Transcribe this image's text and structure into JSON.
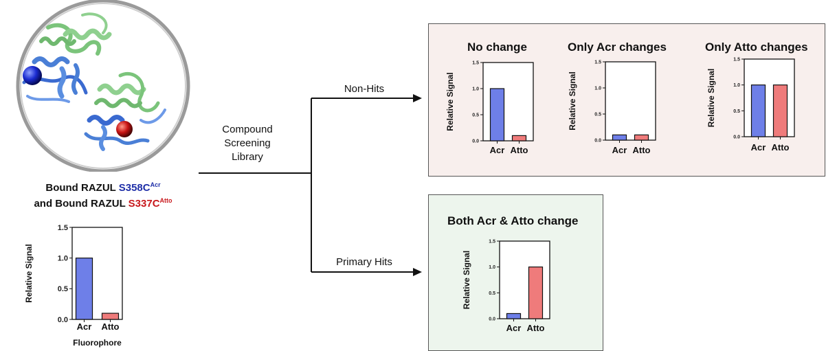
{
  "protein": {
    "caption_line1_prefix": "Bound RAZUL ",
    "caption_line1_site": "S358C",
    "caption_line1_sup": "Acr",
    "caption_line2_prefix": "and Bound RAZUL ",
    "caption_line2_site": "S337C",
    "caption_line2_sup": "Atto",
    "colors": {
      "acr": "#1f2fa8",
      "atto": "#c8181c"
    }
  },
  "flow": {
    "library_line1": "Compound",
    "library_line2": "Screening",
    "library_line3": "Library",
    "non_hits": "Non-Hits",
    "primary_hits": "Primary Hits"
  },
  "panels": {
    "non_hits_bg": "#f8efed",
    "primary_hits_bg": "#edf5ed"
  },
  "colors": {
    "acr_bar": "#6e7fe8",
    "atto_bar": "#ef7b7b",
    "edge": "#111111"
  },
  "chart_data": [
    {
      "id": "baseline",
      "type": "bar",
      "title": "",
      "categories": [
        "Acr",
        "Atto"
      ],
      "values": [
        1.0,
        0.1
      ],
      "ylabel": "Relative Signal",
      "xlabel": "Fluorophore",
      "ylim": [
        0,
        1.5
      ],
      "yticks": [
        "0.0",
        "0.5",
        "1.0",
        "1.5"
      ],
      "grid": false
    },
    {
      "id": "no-change",
      "type": "bar",
      "title": "No change",
      "categories": [
        "Acr",
        "Atto"
      ],
      "values": [
        1.0,
        0.1
      ],
      "ylabel": "Relative Signal",
      "xlabel": "",
      "ylim": [
        0,
        1.5
      ],
      "yticks": [
        "0.0",
        "0.5",
        "1.0",
        "1.5"
      ],
      "grid": false
    },
    {
      "id": "only-acr",
      "type": "bar",
      "title": "Only Acr changes",
      "categories": [
        "Acr",
        "Atto"
      ],
      "values": [
        0.1,
        0.1
      ],
      "ylabel": "Relative Signal",
      "xlabel": "",
      "ylim": [
        0,
        1.5
      ],
      "yticks": [
        "0.0",
        "0.5",
        "1.0",
        "1.5"
      ],
      "grid": false
    },
    {
      "id": "only-atto",
      "type": "bar",
      "title": "Only Atto changes",
      "categories": [
        "Acr",
        "Atto"
      ],
      "values": [
        1.0,
        1.0
      ],
      "ylabel": "Relative Signal",
      "xlabel": "",
      "ylim": [
        0,
        1.5
      ],
      "yticks": [
        "0.0",
        "0.5",
        "1.0",
        "1.5"
      ],
      "grid": false
    },
    {
      "id": "both",
      "type": "bar",
      "title": "Both Acr & Atto change",
      "categories": [
        "Acr",
        "Atto"
      ],
      "values": [
        0.1,
        1.0
      ],
      "ylabel": "Relative Signal",
      "xlabel": "",
      "ylim": [
        0,
        1.5
      ],
      "yticks": [
        "0.0",
        "0.5",
        "1.0",
        "1.5"
      ],
      "grid": false
    }
  ]
}
